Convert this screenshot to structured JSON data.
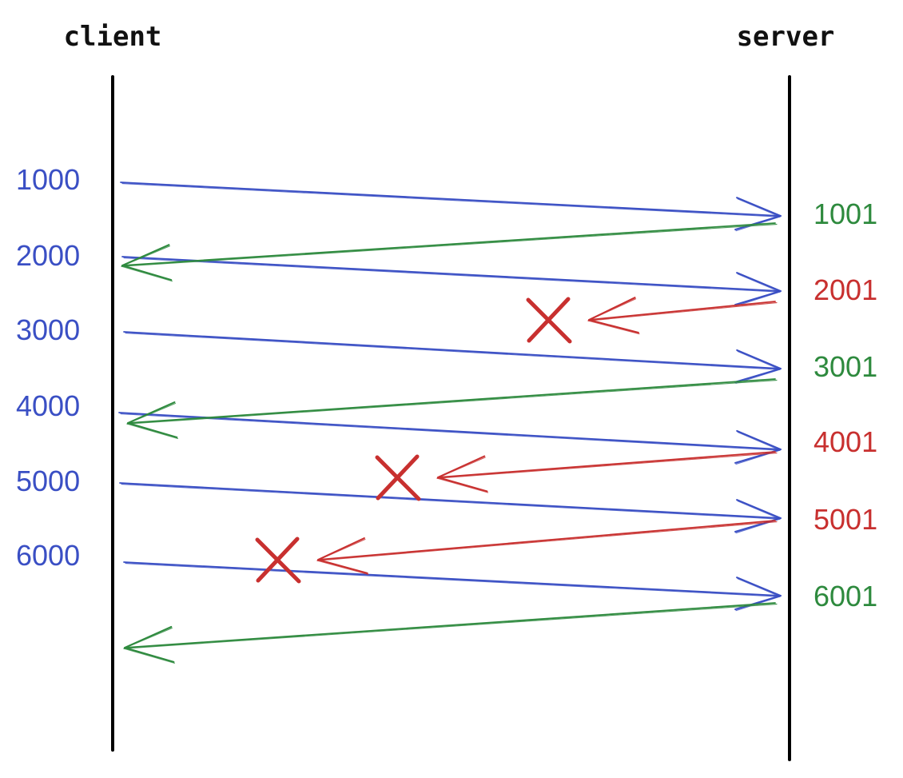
{
  "actors": {
    "client": "client",
    "server": "server"
  },
  "colors": {
    "data": "#3a4fc4",
    "ack": "#2e8a3e",
    "lost": "#c8302f",
    "lifeline": "#000000"
  },
  "sent": [
    {
      "label": "1000"
    },
    {
      "label": "2000"
    },
    {
      "label": "3000"
    },
    {
      "label": "4000"
    },
    {
      "label": "5000"
    },
    {
      "label": "6000"
    }
  ],
  "acks": [
    {
      "label": "1001",
      "status": "delivered"
    },
    {
      "label": "2001",
      "status": "lost"
    },
    {
      "label": "3001",
      "status": "delivered"
    },
    {
      "label": "4001",
      "status": "lost"
    },
    {
      "label": "5001",
      "status": "lost"
    },
    {
      "label": "6001",
      "status": "delivered"
    }
  ]
}
